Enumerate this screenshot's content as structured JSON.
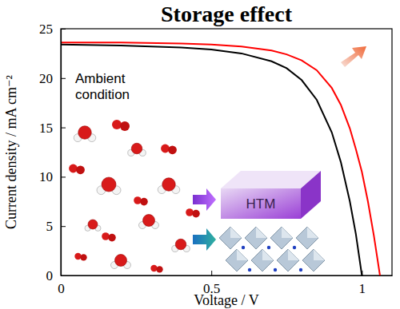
{
  "chart_data": {
    "type": "line",
    "title": "Storage effect",
    "x_label": "Voltage / V",
    "y_label": "Current density / mA cm⁻²",
    "annotations": [
      "Ambient condition",
      "HTM"
    ],
    "x": [
      0,
      0.2,
      0.4,
      0.5,
      0.6,
      0.7,
      0.75,
      0.8,
      0.85,
      0.9,
      0.93,
      0.96,
      0.98,
      1.0,
      1.02,
      1.04,
      1.06
    ],
    "series": [
      {
        "color": "#000000",
        "values": [
          23.4,
          23.3,
          23.1,
          22.9,
          22.5,
          21.7,
          21.0,
          19.8,
          17.8,
          14.5,
          11.5,
          7.5,
          4.2,
          0,
          null,
          null,
          null
        ]
      },
      {
        "color": "#ff0000",
        "values": [
          23.6,
          23.6,
          23.5,
          23.4,
          23.2,
          22.8,
          22.4,
          21.8,
          20.8,
          19.0,
          17.3,
          14.9,
          12.8,
          10.5,
          7.5,
          4.0,
          0
        ]
      }
    ],
    "xlim": [
      0,
      1.1
    ],
    "ylim": [
      0,
      25
    ],
    "xticks": [
      0,
      0.5,
      1
    ],
    "yticks": [
      0,
      5,
      10,
      15,
      20,
      25
    ],
    "grid": false
  }
}
